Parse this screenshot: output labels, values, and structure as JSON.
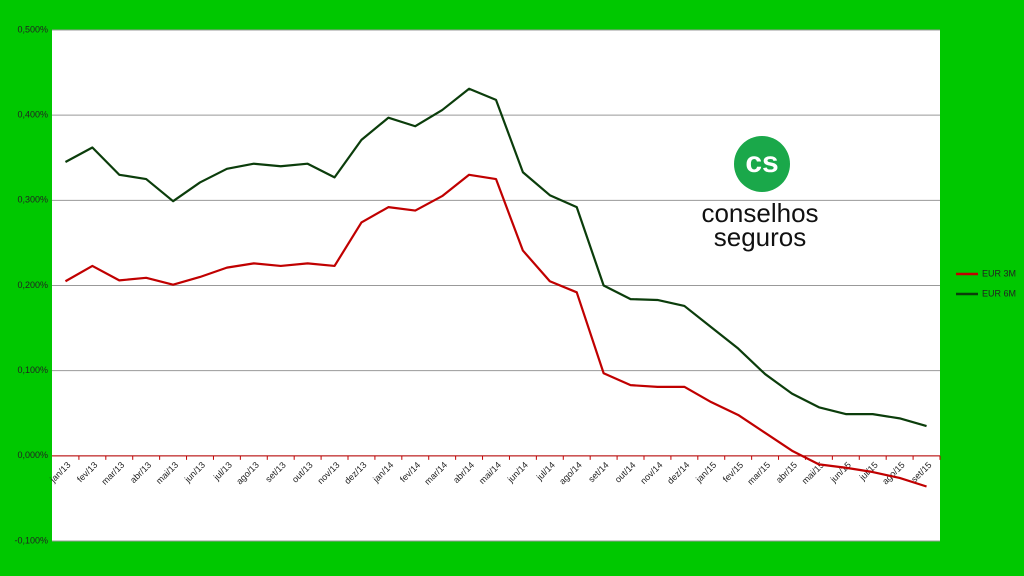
{
  "chart_data": {
    "type": "line",
    "categories": [
      "jan/13",
      "fev/13",
      "mar/13",
      "abr/13",
      "mai/13",
      "jun/13",
      "jul/13",
      "ago/13",
      "set/13",
      "out/13",
      "nov/13",
      "dez/13",
      "jan/14",
      "fev/14",
      "mar/14",
      "abr/14",
      "mai/14",
      "jun/14",
      "jul/14",
      "ago/14",
      "set/14",
      "out/14",
      "nov/14",
      "dez/14",
      "jan/15",
      "fev/15",
      "mar/15",
      "abr/15",
      "mai/15",
      "jun/15",
      "jul/15",
      "ago/15",
      "set/15"
    ],
    "series": [
      {
        "name": "EUR 3M",
        "color": "#c00000",
        "values": [
          0.205,
          0.223,
          0.206,
          0.209,
          0.201,
          0.21,
          0.221,
          0.226,
          0.223,
          0.226,
          0.223,
          0.274,
          0.292,
          0.288,
          0.305,
          0.33,
          0.325,
          0.241,
          0.205,
          0.192,
          0.097,
          0.083,
          0.081,
          0.081,
          0.063,
          0.048,
          0.027,
          0.006,
          -0.01,
          -0.014,
          -0.019,
          -0.026,
          -0.036
        ]
      },
      {
        "name": "EUR 6M",
        "color": "#0b3d0b",
        "values": [
          0.345,
          0.362,
          0.33,
          0.325,
          0.299,
          0.321,
          0.337,
          0.343,
          0.34,
          0.343,
          0.327,
          0.371,
          0.397,
          0.387,
          0.406,
          0.431,
          0.418,
          0.333,
          0.306,
          0.292,
          0.2,
          0.184,
          0.183,
          0.176,
          0.151,
          0.126,
          0.096,
          0.073,
          0.057,
          0.049,
          0.049,
          0.044,
          0.035
        ]
      }
    ],
    "ylim": [
      -0.1,
      0.5
    ],
    "yticks": [
      {
        "value": -0.1,
        "label": "-0,100%"
      },
      {
        "value": 0,
        "label": "0,000%"
      },
      {
        "value": 0.1,
        "label": "0,100%"
      },
      {
        "value": 0.2,
        "label": "0,200%"
      },
      {
        "value": 0.3,
        "label": "0,300%"
      },
      {
        "value": 0.4,
        "label": "0,400%"
      },
      {
        "value": 0.5,
        "label": "0,500%"
      }
    ],
    "grid": true,
    "legend": "right"
  },
  "logo": [
    "conselhos",
    "seguros"
  ]
}
